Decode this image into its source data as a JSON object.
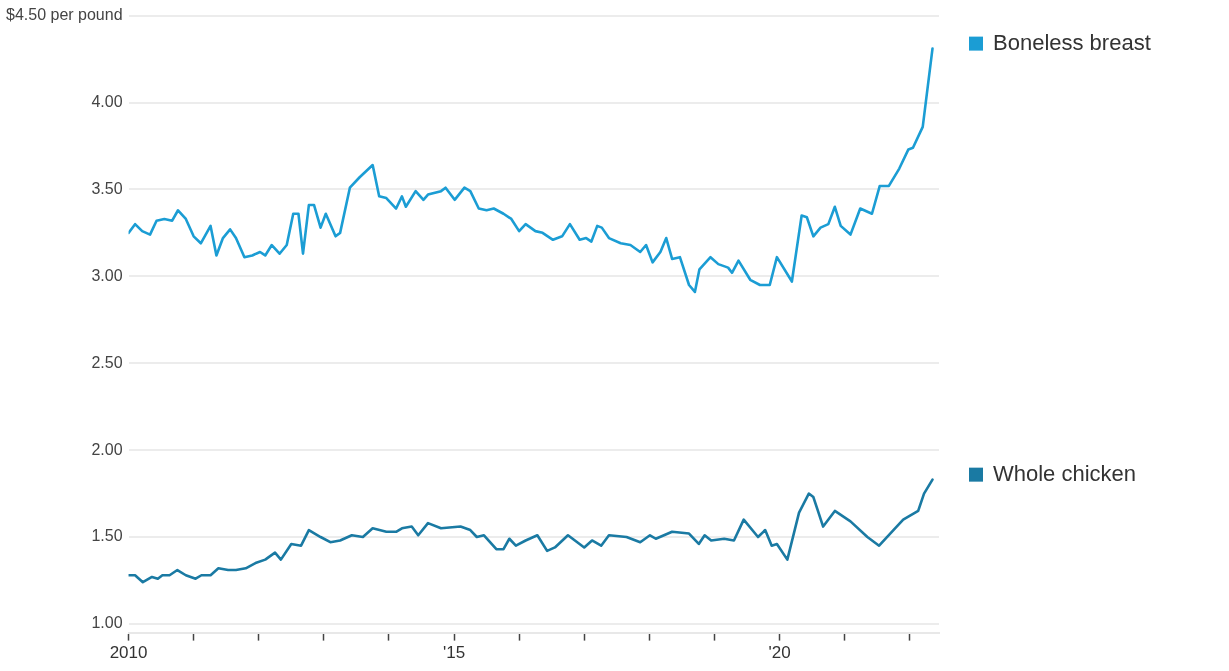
{
  "chart_data": {
    "type": "line",
    "legend": "right",
    "grid": "y",
    "marker": "none",
    "line_style": "solid",
    "ylim": [
      0.95,
      4.5
    ],
    "yticks": [
      {
        "value": 1,
        "label": "1.00"
      },
      {
        "value": 1.5,
        "label": "1.50"
      },
      {
        "value": 2,
        "label": "2.00"
      },
      {
        "value": 2.5,
        "label": "2.50"
      },
      {
        "value": 3,
        "label": "3.00"
      },
      {
        "value": 3.5,
        "label": "3.50"
      },
      {
        "value": 4,
        "label": "4.00"
      },
      {
        "value": 4.5,
        "label": "$4.50 per pound"
      }
    ],
    "xlim": [
      2010,
      2022.45
    ],
    "xticks": [
      {
        "value": 2010,
        "label": "2010"
      },
      {
        "value": 2011,
        "label": null
      },
      {
        "value": 2012,
        "label": null
      },
      {
        "value": 2013,
        "label": null
      },
      {
        "value": 2014,
        "label": null
      },
      {
        "value": 2015,
        "label": "'15"
      },
      {
        "value": 2016,
        "label": null
      },
      {
        "value": 2017,
        "label": null
      },
      {
        "value": 2018,
        "label": null
      },
      {
        "value": 2019,
        "label": null
      },
      {
        "value": 2020,
        "label": "'20"
      },
      {
        "value": 2021,
        "label": null
      },
      {
        "value": 2022,
        "label": null
      }
    ],
    "series": [
      {
        "name": "Boneless breast",
        "color": "#1b9dd4",
        "x": [
          2010,
          2010.1,
          2010.21,
          2010.33,
          2010.43,
          2010.55,
          2010.67,
          2010.76,
          2010.88,
          2011,
          2011.11,
          2011.26,
          2011.35,
          2011.45,
          2011.56,
          2011.65,
          2011.78,
          2011.9,
          2012.02,
          2012.1,
          2012.2,
          2012.32,
          2012.43,
          2012.53,
          2012.61,
          2012.68,
          2012.77,
          2012.85,
          2012.95,
          2013.03,
          2013.18,
          2013.25,
          2013.4,
          2013.55,
          2013.75,
          2013.85,
          2013.96,
          2014.11,
          2014.2,
          2014.26,
          2014.41,
          2014.53,
          2014.6,
          2014.8,
          2014.87,
          2015.01,
          2015.16,
          2015.25,
          2015.38,
          2015.5,
          2015.61,
          2015.76,
          2015.88,
          2016,
          2016.1,
          2016.25,
          2016.36,
          2016.52,
          2016.66,
          2016.78,
          2016.93,
          2017.03,
          2017.11,
          2017.2,
          2017.27,
          2017.38,
          2017.56,
          2017.71,
          2017.86,
          2017.95,
          2018.05,
          2018.17,
          2018.26,
          2018.35,
          2018.47,
          2018.61,
          2018.7,
          2018.77,
          2018.94,
          2019.06,
          2019.21,
          2019.27,
          2019.37,
          2019.55,
          2019.7,
          2019.85,
          2019.96,
          2020.19,
          2020.34,
          2020.42,
          2020.52,
          2020.63,
          2020.75,
          2020.85,
          2020.94,
          2021.09,
          2021.24,
          2021.42,
          2021.54,
          2021.68,
          2021.84,
          2021.98,
          2022.05,
          2022.2,
          2022.35
        ],
        "values": [
          3.25,
          3.3,
          3.26,
          3.24,
          3.32,
          3.33,
          3.32,
          3.38,
          3.33,
          3.23,
          3.19,
          3.29,
          3.12,
          3.22,
          3.27,
          3.22,
          3.11,
          3.12,
          3.14,
          3.12,
          3.18,
          3.13,
          3.18,
          3.36,
          3.36,
          3.13,
          3.41,
          3.41,
          3.28,
          3.36,
          3.23,
          3.25,
          3.51,
          3.57,
          3.64,
          3.46,
          3.45,
          3.39,
          3.46,
          3.4,
          3.49,
          3.44,
          3.47,
          3.49,
          3.51,
          3.44,
          3.51,
          3.49,
          3.39,
          3.38,
          3.39,
          3.36,
          3.33,
          3.26,
          3.3,
          3.26,
          3.25,
          3.21,
          3.23,
          3.3,
          3.21,
          3.22,
          3.2,
          3.29,
          3.28,
          3.22,
          3.19,
          3.18,
          3.14,
          3.18,
          3.08,
          3.14,
          3.22,
          3.1,
          3.11,
          2.95,
          2.91,
          3.04,
          3.11,
          3.07,
          3.05,
          3.02,
          3.09,
          2.98,
          2.95,
          2.95,
          3.11,
          2.97,
          3.35,
          3.34,
          3.23,
          3.28,
          3.3,
          3.4,
          3.29,
          3.24,
          3.39,
          3.36,
          3.52,
          3.52,
          3.62,
          3.73,
          3.74,
          3.86,
          4.31
        ]
      },
      {
        "name": "Whole chicken",
        "color": "#1a7aa3",
        "x": [
          2010,
          2010.1,
          2010.22,
          2010.36,
          2010.45,
          2010.52,
          2010.63,
          2010.75,
          2010.88,
          2011.03,
          2011.12,
          2011.26,
          2011.38,
          2011.53,
          2011.65,
          2011.8,
          2011.95,
          2012.1,
          2012.25,
          2012.34,
          2012.5,
          2012.65,
          2012.77,
          2012.95,
          2013.1,
          2013.25,
          2013.43,
          2013.6,
          2013.75,
          2013.96,
          2014.11,
          2014.2,
          2014.35,
          2014.45,
          2014.6,
          2014.8,
          2015.1,
          2015.25,
          2015.35,
          2015.46,
          2015.65,
          2015.76,
          2015.85,
          2015.95,
          2016.1,
          2016.28,
          2016.43,
          2016.55,
          2016.75,
          2017,
          2017.12,
          2017.26,
          2017.38,
          2017.65,
          2017.86,
          2018.01,
          2018.1,
          2018.35,
          2018.61,
          2018.76,
          2018.85,
          2018.95,
          2019.15,
          2019.3,
          2019.45,
          2019.67,
          2019.78,
          2019.88,
          2019.96,
          2020.12,
          2020.3,
          2020.45,
          2020.52,
          2020.67,
          2020.85,
          2021.09,
          2021.35,
          2021.53,
          2021.75,
          2021.9,
          2022.13,
          2022.22,
          2022.35
        ],
        "values": [
          1.28,
          1.28,
          1.24,
          1.27,
          1.26,
          1.28,
          1.28,
          1.31,
          1.28,
          1.26,
          1.28,
          1.28,
          1.32,
          1.31,
          1.31,
          1.32,
          1.35,
          1.37,
          1.41,
          1.37,
          1.46,
          1.45,
          1.54,
          1.5,
          1.47,
          1.48,
          1.51,
          1.5,
          1.55,
          1.53,
          1.53,
          1.55,
          1.56,
          1.51,
          1.58,
          1.55,
          1.56,
          1.54,
          1.5,
          1.51,
          1.43,
          1.43,
          1.49,
          1.45,
          1.48,
          1.51,
          1.42,
          1.44,
          1.51,
          1.44,
          1.48,
          1.45,
          1.51,
          1.5,
          1.47,
          1.51,
          1.49,
          1.53,
          1.52,
          1.46,
          1.51,
          1.48,
          1.49,
          1.48,
          1.6,
          1.5,
          1.54,
          1.45,
          1.46,
          1.37,
          1.64,
          1.75,
          1.73,
          1.56,
          1.65,
          1.59,
          1.5,
          1.45,
          1.54,
          1.6,
          1.65,
          1.75,
          1.83
        ]
      }
    ]
  }
}
